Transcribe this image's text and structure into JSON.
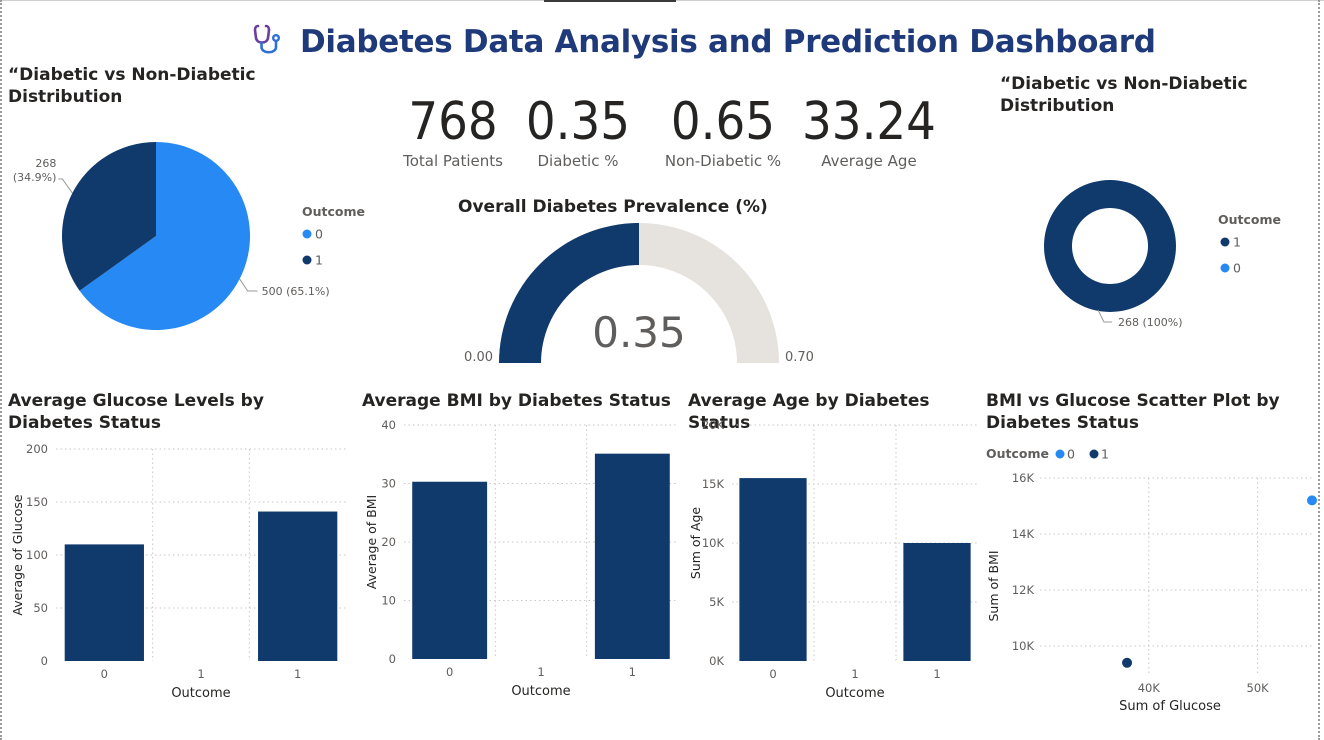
{
  "dashboard": {
    "title": "Diabetes Data Analysis and Prediction Dashboard",
    "icon": "stethoscope-icon"
  },
  "kpis": [
    {
      "value": "768",
      "label": "Total Patients"
    },
    {
      "value": "0.35",
      "label": "Diabetic %"
    },
    {
      "value": "0.65",
      "label": "Non-Diabetic %"
    },
    {
      "value": "33.24",
      "label": "Average Age"
    }
  ],
  "colors": {
    "outcome_0": "#2689f4",
    "outcome_1": "#0f3a6b",
    "gauge_track": "#e6e2dd",
    "gridline": "#c8c8c8"
  },
  "chart_data": [
    {
      "id": "pie",
      "type": "pie",
      "title": "“Diabetic vs Non-Diabetic Distribution",
      "legend_title": "Outcome",
      "legend_position": "right",
      "slices": [
        {
          "category": "0",
          "value": 500,
          "label": "500 (65.1%)"
        },
        {
          "category": "1",
          "value": 268,
          "label": "268\n(34.9%)"
        }
      ]
    },
    {
      "id": "gauge",
      "type": "gauge",
      "title": "Overall Diabetes Prevalence (%)",
      "value": 0.35,
      "value_label": "0.35",
      "min": 0,
      "max": 0.7,
      "min_label": "0.00",
      "max_label": "0.70"
    },
    {
      "id": "donut",
      "type": "pie",
      "title": "“Diabetic vs Non-Diabetic Distribution",
      "legend_title": "Outcome",
      "legend_position": "right",
      "legend_items": [
        "1",
        "0"
      ],
      "slices": [
        {
          "category": "1",
          "value": 268,
          "label": "268 (100%)"
        }
      ]
    },
    {
      "id": "glucose",
      "type": "bar",
      "title": "Average Glucose Levels by Diabetes Status",
      "xlabel": "Outcome",
      "ylabel": "Average of Glucose",
      "categories": [
        "0",
        "1",
        "1"
      ],
      "values": [
        110,
        null,
        141
      ],
      "ylim": [
        0,
        200
      ],
      "yticks": [
        "0",
        "50",
        "100",
        "150",
        "200"
      ],
      "ytick_values": [
        0,
        50,
        100,
        150,
        200
      ],
      "grid": true
    },
    {
      "id": "bmi",
      "type": "bar",
      "title": "Average BMI by Diabetes Status",
      "xlabel": "Outcome",
      "ylabel": "Average of BMI",
      "categories": [
        "0",
        "1",
        "1"
      ],
      "values": [
        30.3,
        null,
        35.1
      ],
      "ylim": [
        0,
        40
      ],
      "yticks": [
        "0",
        "10",
        "20",
        "30",
        "40"
      ],
      "ytick_values": [
        0,
        10,
        20,
        30,
        40
      ],
      "grid": true
    },
    {
      "id": "age",
      "type": "bar",
      "title": "Average Age by Diabetes Status",
      "xlabel": "Outcome",
      "ylabel": "Sum of Age",
      "categories": [
        "0",
        "1",
        "1"
      ],
      "values": [
        15500,
        null,
        10000
      ],
      "ylim": [
        0,
        20000
      ],
      "yticks": [
        "0K",
        "5K",
        "10K",
        "15K",
        "20K"
      ],
      "ytick_values": [
        0,
        5000,
        10000,
        15000,
        20000
      ],
      "grid": true
    },
    {
      "id": "scatter",
      "type": "scatter",
      "title": "BMI vs Glucose Scatter Plot by Diabetes Status",
      "xlabel": "Sum of Glucose",
      "ylabel": "Sum of BMI",
      "legend_title": "Outcome",
      "legend_position": "top-left",
      "legend_items": [
        "0",
        "1"
      ],
      "xlim": [
        30000,
        55000
      ],
      "ylim": [
        9000,
        16000
      ],
      "xticks": [
        "40K",
        "50K"
      ],
      "xtick_values": [
        40000,
        50000
      ],
      "yticks": [
        "10K",
        "12K",
        "14K",
        "16K"
      ],
      "ytick_values": [
        10000,
        12000,
        14000,
        16000
      ],
      "series": [
        {
          "name": "0",
          "points": [
            {
              "x": 55000,
              "y": 15200
            }
          ]
        },
        {
          "name": "1",
          "points": [
            {
              "x": 38000,
              "y": 9400
            }
          ]
        }
      ],
      "grid": true
    }
  ]
}
